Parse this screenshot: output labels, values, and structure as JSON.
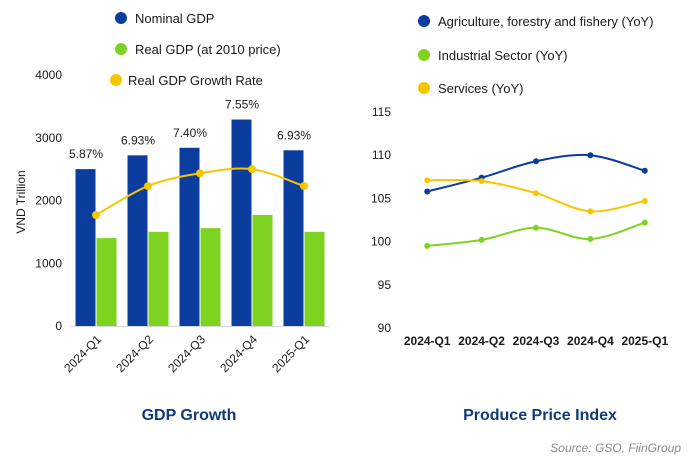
{
  "source": "Source: GSO, FiinGroup",
  "chart_data": [
    {
      "type": "bar",
      "title": "GDP Growth",
      "ylabel": "VND Trillion",
      "ylim": [
        0,
        4000
      ],
      "yticks": [
        "0",
        "1000",
        "2000",
        "3000",
        "4000"
      ],
      "categories": [
        "2024-Q1",
        "2024-Q2",
        "2024-Q3",
        "2024-Q4",
        "2025-Q1"
      ],
      "series": [
        {
          "name": "Nominal GDP",
          "kind": "bar",
          "color": "#0a3d9e",
          "values": [
            2500,
            2720,
            2840,
            3290,
            2800
          ]
        },
        {
          "name": "Real GDP (at 2010 price)",
          "kind": "bar",
          "color": "#7ed321",
          "values": [
            1400,
            1500,
            1560,
            1770,
            1500
          ]
        },
        {
          "name": "Real GDP Growth Rate",
          "kind": "line",
          "color": "#f7c600",
          "values": [
            5.87,
            6.93,
            7.4,
            7.55,
            6.93
          ],
          "labels": [
            "5.87%",
            "6.93%",
            "7.40%",
            "7.55%",
            "6.93%"
          ]
        }
      ]
    },
    {
      "type": "line",
      "title": "Produce Price Index",
      "ylim": [
        90,
        115
      ],
      "yticks": [
        "90",
        "95",
        "100",
        "105",
        "110",
        "115"
      ],
      "categories": [
        "2024-Q1",
        "2024-Q2",
        "2024-Q3",
        "2024-Q4",
        "2025-Q1"
      ],
      "series": [
        {
          "name": "Agriculture, forestry and fishery (YoY)",
          "color": "#0a3d9e",
          "values": [
            105.8,
            107.4,
            109.3,
            110.0,
            108.2
          ]
        },
        {
          "name": "Industrial Sector (YoY)",
          "color": "#7ed321",
          "values": [
            99.5,
            100.2,
            101.6,
            100.3,
            102.2
          ]
        },
        {
          "name": "Services (YoY)",
          "color": "#f7c600",
          "values": [
            107.1,
            107.0,
            105.6,
            103.5,
            104.7
          ]
        }
      ]
    }
  ]
}
